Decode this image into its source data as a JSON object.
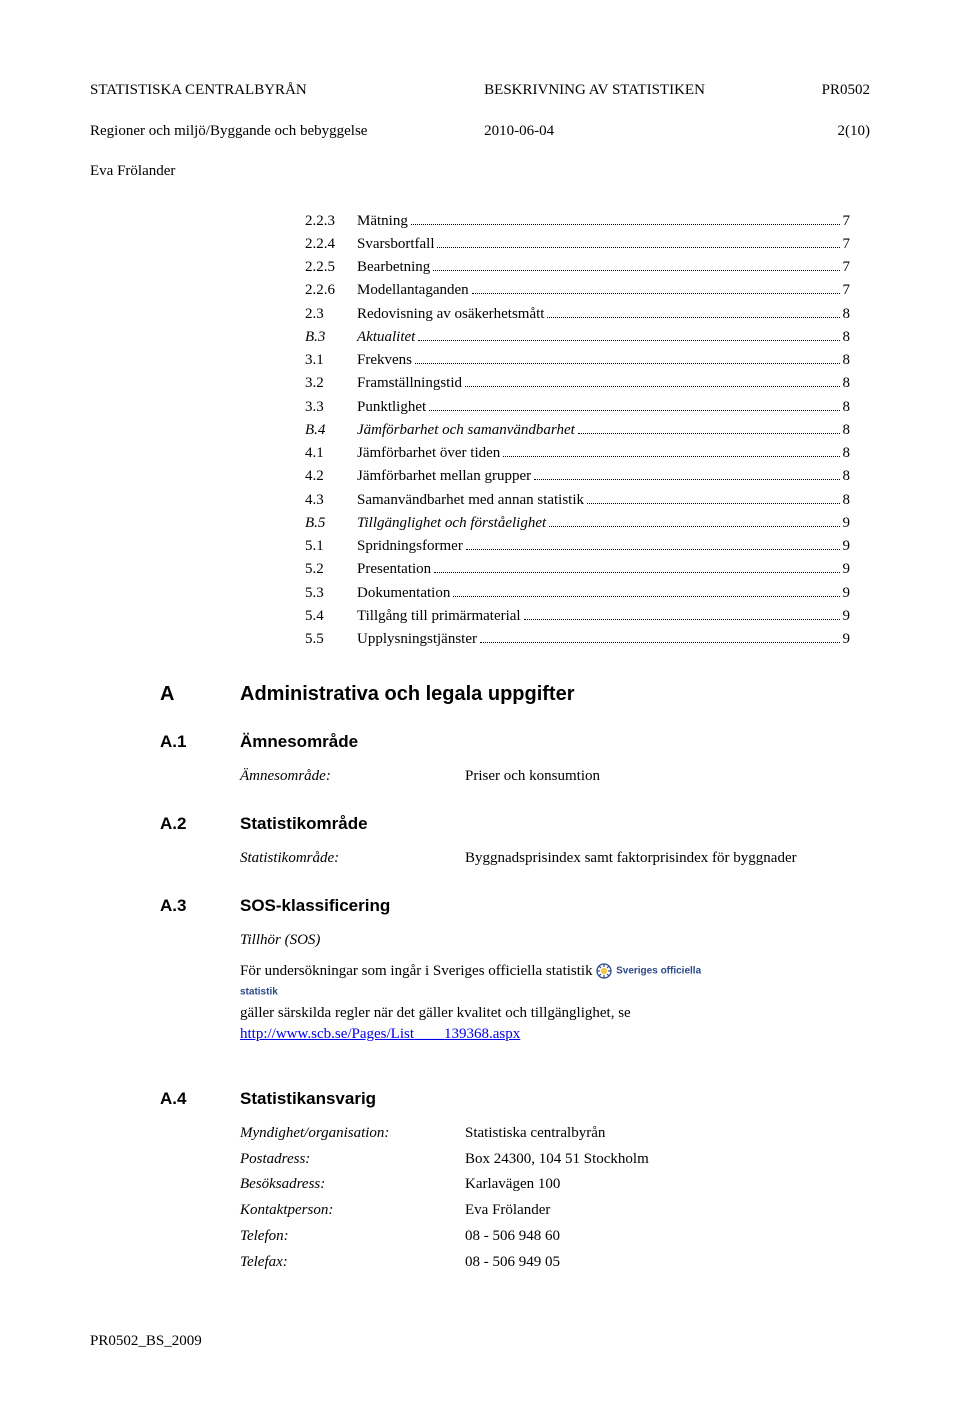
{
  "header": {
    "left_line1": "STATISTISKA CENTRALBYRÅN",
    "left_line2": "Regioner och miljö/Byggande och bebyggelse",
    "left_line3": "Eva Frölander",
    "mid_line1": "BESKRIVNING AV STATISTIKEN",
    "mid_line2": "2010-06-04",
    "right_line1": "PR0502",
    "right_line2": "2(10)"
  },
  "toc": [
    {
      "num": "2.2.3",
      "label": "Mätning",
      "page": "7",
      "italic": false
    },
    {
      "num": "2.2.4",
      "label": "Svarsbortfall",
      "page": "7",
      "italic": false
    },
    {
      "num": "2.2.5",
      "label": "Bearbetning",
      "page": "7",
      "italic": false
    },
    {
      "num": "2.2.6",
      "label": "Modellantaganden",
      "page": "7",
      "italic": false
    },
    {
      "num": "2.3",
      "label": "Redovisning av osäkerhetsmått",
      "page": "8",
      "italic": false
    },
    {
      "num": "B.3",
      "label": "Aktualitet",
      "page": "8",
      "italic": true
    },
    {
      "num": "3.1",
      "label": "Frekvens",
      "page": "8",
      "italic": false
    },
    {
      "num": "3.2",
      "label": "Framställningstid",
      "page": "8",
      "italic": false
    },
    {
      "num": "3.3",
      "label": "Punktlighet",
      "page": "8",
      "italic": false
    },
    {
      "num": "B.4",
      "label": "Jämförbarhet och samanvändbarhet",
      "page": "8",
      "italic": true
    },
    {
      "num": "4.1",
      "label": "Jämförbarhet över tiden",
      "page": "8",
      "italic": false
    },
    {
      "num": "4.2",
      "label": "Jämförbarhet mellan grupper",
      "page": "8",
      "italic": false
    },
    {
      "num": "4.3",
      "label": "Samanvändbarhet med annan statistik",
      "page": "8",
      "italic": false
    },
    {
      "num": "B.5",
      "label": "Tillgänglighet och förståelighet",
      "page": "9",
      "italic": true
    },
    {
      "num": "5.1",
      "label": "Spridningsformer",
      "page": "9",
      "italic": false
    },
    {
      "num": "5.2",
      "label": "Presentation",
      "page": "9",
      "italic": false
    },
    {
      "num": "5.3",
      "label": "Dokumentation",
      "page": "9",
      "italic": false
    },
    {
      "num": "5.4",
      "label": "Tillgång till primärmaterial",
      "page": "9",
      "italic": false
    },
    {
      "num": "5.5",
      "label": "Upplysningstjänster",
      "page": "9",
      "italic": false
    }
  ],
  "section_a": {
    "num": "A",
    "title": "Administrativa och legala uppgifter",
    "a1": {
      "num": "A.1",
      "title": "Ämnesområde",
      "label": "Ämnesområde:",
      "value": "Priser och konsumtion"
    },
    "a2": {
      "num": "A.2",
      "title": "Statistikområde",
      "label": "Statistikområde:",
      "value": "Byggnadsprisindex samt faktorprisindex för byggnader"
    },
    "a3": {
      "num": "A.3",
      "title": "SOS-klassificering",
      "italic_line": "Tillhör (SOS)",
      "body_pre": "För undersökningar som ingår i Sveriges officiella statistik ",
      "badge_text": "Sveriges officiella statistik",
      "body_post": "gäller särskilda regler när det gäller kvalitet och tillgänglighet, se ",
      "link_text": "http://www.scb.se/Pages/List____139368.aspx"
    },
    "a4": {
      "num": "A.4",
      "title": "Statistikansvarig",
      "rows": [
        {
          "k": "Myndighet/organisation:",
          "v": "Statistiska centralbyrån"
        },
        {
          "k": "Postadress:",
          "v": "Box 24300, 104 51 Stockholm"
        },
        {
          "k": "Besöksadress:",
          "v": "Karlavägen 100"
        },
        {
          "k": "Kontaktperson:",
          "v": "Eva Frölander"
        },
        {
          "k": "Telefon:",
          "v": "08 - 506 948 60"
        },
        {
          "k": "Telefax:",
          "v": "08 - 506 949 05"
        }
      ]
    }
  },
  "footer": "PR0502_BS_2009",
  "colors": {
    "text": "#000000",
    "link": "#0000ee",
    "badge": "#2a4a8a",
    "background": "#ffffff"
  }
}
